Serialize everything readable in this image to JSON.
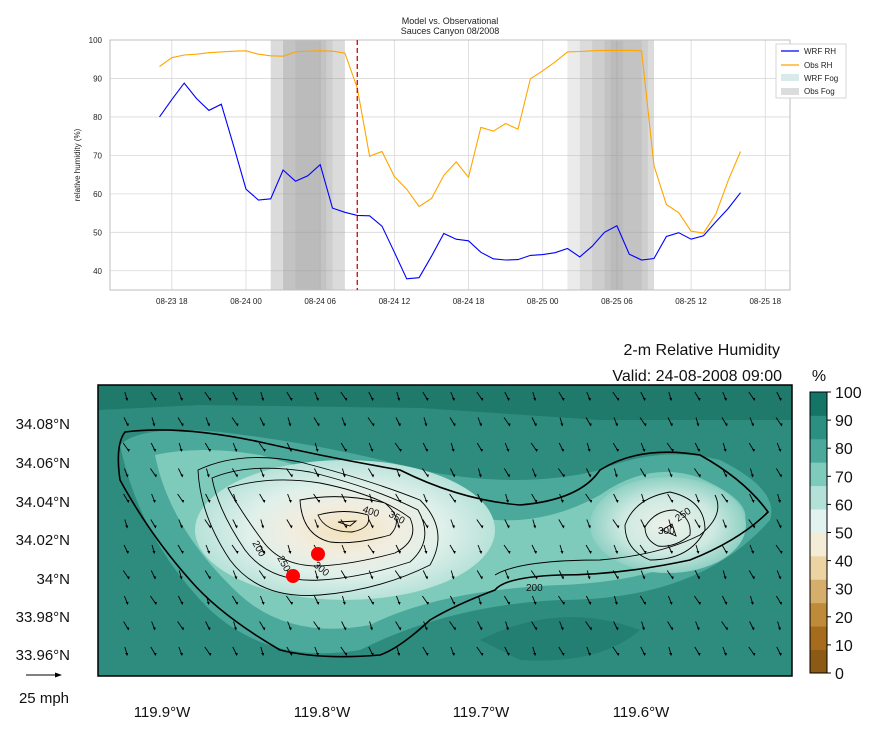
{
  "chart_data": [
    {
      "type": "line",
      "title": "Model vs. Observational",
      "subtitle": "Sauces Canyon 08/2008",
      "xlabel": "",
      "ylabel": "relative humidity (%)",
      "ylim": [
        35,
        100
      ],
      "xlim": [
        "2008-08-23T13:00",
        "2008-08-25T20:00"
      ],
      "yticks": [
        40,
        50,
        60,
        70,
        80,
        90,
        100
      ],
      "xticks": [
        "08-23 18",
        "08-24 00",
        "08-24 06",
        "08-24 12",
        "08-24 18",
        "08-25 00",
        "08-25 06",
        "08-25 12",
        "08-25 18"
      ],
      "xtick_times": [
        "2008-08-23T18:00",
        "2008-08-24T00:00",
        "2008-08-24T06:00",
        "2008-08-24T12:00",
        "2008-08-24T18:00",
        "2008-08-25T00:00",
        "2008-08-25T06:00",
        "2008-08-25T12:00",
        "2008-08-25T18:00"
      ],
      "grid": true,
      "legend_position": "top-right",
      "series": [
        {
          "name": "WRF RH",
          "color": "#0000ff",
          "points": [
            [
              "2008-08-23T17:00",
              80
            ],
            [
              "2008-08-23T18:00",
              84.5
            ],
            [
              "2008-08-23T19:00",
              88.8
            ],
            [
              "2008-08-23T20:00",
              84.8
            ],
            [
              "2008-08-23T21:00",
              81.7
            ],
            [
              "2008-08-23T22:00",
              83.3
            ],
            [
              "2008-08-23T23:00",
              72.5
            ],
            [
              "2008-08-24T00:00",
              61.2
            ],
            [
              "2008-08-24T01:00",
              58.4
            ],
            [
              "2008-08-24T02:00",
              58.7
            ],
            [
              "2008-08-24T03:00",
              66.2
            ],
            [
              "2008-08-24T04:00",
              63.3
            ],
            [
              "2008-08-24T05:00",
              64.7
            ],
            [
              "2008-08-24T06:00",
              67.6
            ],
            [
              "2008-08-24T07:00",
              56.3
            ],
            [
              "2008-08-24T08:00",
              55.2
            ],
            [
              "2008-08-24T09:00",
              54.4
            ],
            [
              "2008-08-24T10:00",
              54.3
            ],
            [
              "2008-08-24T11:00",
              51.6
            ],
            [
              "2008-08-24T12:00",
              44.8
            ],
            [
              "2008-08-24T13:00",
              37.9
            ],
            [
              "2008-08-24T14:00",
              38.2
            ],
            [
              "2008-08-24T15:00",
              43.8
            ],
            [
              "2008-08-24T16:00",
              49.7
            ],
            [
              "2008-08-24T17:00",
              48.2
            ],
            [
              "2008-08-24T18:00",
              47.8
            ],
            [
              "2008-08-24T19:00",
              44.8
            ],
            [
              "2008-08-24T20:00",
              43.1
            ],
            [
              "2008-08-24T21:00",
              42.8
            ],
            [
              "2008-08-24T22:00",
              42.9
            ],
            [
              "2008-08-24T23:00",
              44.0
            ],
            [
              "2008-08-25T00:00",
              44.2
            ],
            [
              "2008-08-25T01:00",
              44.7
            ],
            [
              "2008-08-25T02:00",
              45.8
            ],
            [
              "2008-08-25T03:00",
              43.6
            ],
            [
              "2008-08-25T04:00",
              46.4
            ],
            [
              "2008-08-25T05:00",
              50.0
            ],
            [
              "2008-08-25T06:00",
              51.7
            ],
            [
              "2008-08-25T07:00",
              44.3
            ],
            [
              "2008-08-25T08:00",
              42.8
            ],
            [
              "2008-08-25T09:00",
              43.2
            ],
            [
              "2008-08-25T10:00",
              48.9
            ],
            [
              "2008-08-25T11:00",
              49.9
            ],
            [
              "2008-08-25T12:00",
              48.2
            ],
            [
              "2008-08-25T13:00",
              49.1
            ],
            [
              "2008-08-25T14:00",
              52.7
            ],
            [
              "2008-08-25T15:00",
              56.2
            ],
            [
              "2008-08-25T16:00",
              60.3
            ]
          ]
        },
        {
          "name": "Obs RH",
          "color": "#ffa500",
          "points": [
            [
              "2008-08-23T17:00",
              93.1
            ],
            [
              "2008-08-23T18:00",
              95.4
            ],
            [
              "2008-08-23T19:00",
              96.1
            ],
            [
              "2008-08-23T20:00",
              96.3
            ],
            [
              "2008-08-23T21:00",
              96.7
            ],
            [
              "2008-08-23T22:00",
              96.9
            ],
            [
              "2008-08-23T23:00",
              97.1
            ],
            [
              "2008-08-24T00:00",
              97.2
            ],
            [
              "2008-08-24T01:00",
              96.3
            ],
            [
              "2008-08-24T02:00",
              95.9
            ],
            [
              "2008-08-24T03:00",
              95.8
            ],
            [
              "2008-08-24T04:00",
              96.9
            ],
            [
              "2008-08-24T05:00",
              97.1
            ],
            [
              "2008-08-24T06:00",
              97.2
            ],
            [
              "2008-08-24T07:00",
              97.1
            ],
            [
              "2008-08-24T08:00",
              96.6
            ],
            [
              "2008-08-24T09:00",
              87.5
            ],
            [
              "2008-08-24T10:00",
              69.8
            ],
            [
              "2008-08-24T11:00",
              71.0
            ],
            [
              "2008-08-24T12:00",
              64.5
            ],
            [
              "2008-08-24T13:00",
              61.2
            ],
            [
              "2008-08-24T14:00",
              56.7
            ],
            [
              "2008-08-24T15:00",
              58.8
            ],
            [
              "2008-08-24T16:00",
              64.8
            ],
            [
              "2008-08-24T17:00",
              68.3
            ],
            [
              "2008-08-24T18:00",
              64.3
            ],
            [
              "2008-08-24T19:00",
              77.3
            ],
            [
              "2008-08-24T20:00",
              76.3
            ],
            [
              "2008-08-24T21:00",
              78.3
            ],
            [
              "2008-08-24T22:00",
              76.8
            ],
            [
              "2008-08-24T23:00",
              89.9
            ],
            [
              "2008-08-25T00:00",
              92.0
            ],
            [
              "2008-08-25T01:00",
              94.3
            ],
            [
              "2008-08-25T02:00",
              96.9
            ],
            [
              "2008-08-25T03:00",
              97.0
            ],
            [
              "2008-08-25T04:00",
              97.2
            ],
            [
              "2008-08-25T05:00",
              97.3
            ],
            [
              "2008-08-25T06:00",
              97.3
            ],
            [
              "2008-08-25T07:00",
              97.3
            ],
            [
              "2008-08-25T08:00",
              97.2
            ],
            [
              "2008-08-25T09:00",
              67.3
            ],
            [
              "2008-08-25T10:00",
              57.2
            ],
            [
              "2008-08-25T11:00",
              55.1
            ],
            [
              "2008-08-25T12:00",
              50.3
            ],
            [
              "2008-08-25T13:00",
              49.8
            ],
            [
              "2008-08-25T14:00",
              54.7
            ],
            [
              "2008-08-25T15:00",
              63.5
            ],
            [
              "2008-08-25T16:00",
              71.0
            ]
          ]
        }
      ],
      "shaded_periods": [
        {
          "name": "WRF Fog",
          "color": "#d8eaea",
          "ranges": []
        },
        {
          "name": "Obs Fog",
          "color": "#bdbdbd",
          "ranges": [
            [
              "2008-08-24T02:00",
              "2008-08-24T08:00"
            ],
            [
              "2008-08-24T02:00",
              "2008-08-24T08:00"
            ],
            [
              "2008-08-24T03:00",
              "2008-08-24T07:00"
            ],
            [
              "2008-08-24T03:00",
              "2008-08-24T06:30"
            ],
            [
              "2008-08-24T04:00",
              "2008-08-24T06:00"
            ],
            [
              "2008-08-25T02:00",
              "2008-08-25T09:00"
            ],
            [
              "2008-08-25T03:00",
              "2008-08-25T09:00"
            ],
            [
              "2008-08-25T04:00",
              "2008-08-25T08:30"
            ],
            [
              "2008-08-25T05:00",
              "2008-08-25T08:00"
            ],
            [
              "2008-08-25T05:30",
              "2008-08-25T06:30"
            ]
          ]
        }
      ],
      "vline": {
        "time": "2008-08-24T09:00",
        "color": "#e00000",
        "style": "dashed"
      }
    },
    {
      "type": "heatmap",
      "title": "2-m Relative Humidity",
      "subtitle": "Valid: 24-08-2008 09:00",
      "xlabel": "",
      "ylabel": "",
      "x_ticks": [
        "119.9°W",
        "119.8°W",
        "119.7°W",
        "119.6°W"
      ],
      "y_ticks": [
        "34.08°N",
        "34.06°N",
        "34.04°N",
        "34.02°N",
        "34°N",
        "33.98°N",
        "33.96°N"
      ],
      "colorbar": {
        "unit": "%",
        "ticks": [
          0,
          10,
          20,
          30,
          40,
          50,
          60,
          70,
          80,
          90,
          100
        ],
        "colors": [
          "#8c5a14",
          "#a66b1d",
          "#bf8a3a",
          "#d6ae6b",
          "#ecd3a2",
          "#f4ecd6",
          "#e2f2ef",
          "#b3e1d8",
          "#7ecabb",
          "#4aa99a",
          "#2b8f81",
          "#147567"
        ]
      },
      "contour_labels": [
        "400",
        "350",
        "300",
        "250",
        "200",
        "300",
        "250",
        "200"
      ],
      "wind_scale_label": "25 mph",
      "station_count": 2
    }
  ]
}
